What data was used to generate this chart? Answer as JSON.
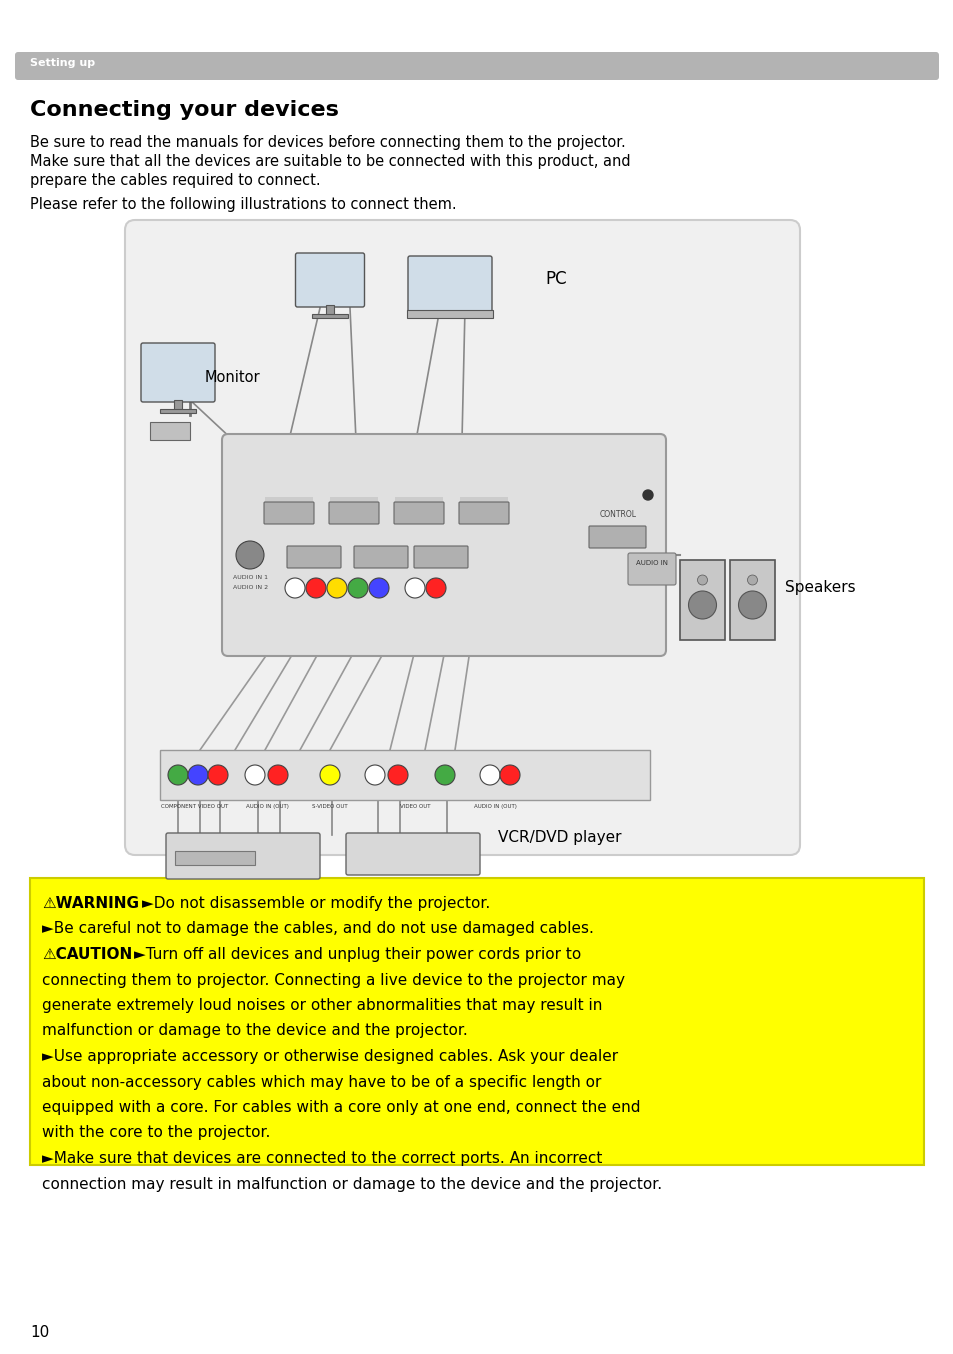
{
  "page_bg": "#ffffff",
  "header_bg": "#b3b3b3",
  "header_text": "Setting up",
  "header_text_color": "#ffffff",
  "title": "Connecting your devices",
  "body_text_1a": "Be sure to read the manuals for devices before connecting them to the projector.",
  "body_text_1b": "Make sure that all the devices are suitable to be connected with this product, and",
  "body_text_1c": "prepare the cables required to connect.",
  "body_text_2": "Please refer to the following illustrations to connect them.",
  "warning_bg": "#ffff00",
  "page_number": "10",
  "label_monitor": "Monitor",
  "label_pc": "PC",
  "label_speakers": "Speakers",
  "label_vcr": "VCR/DVD player"
}
